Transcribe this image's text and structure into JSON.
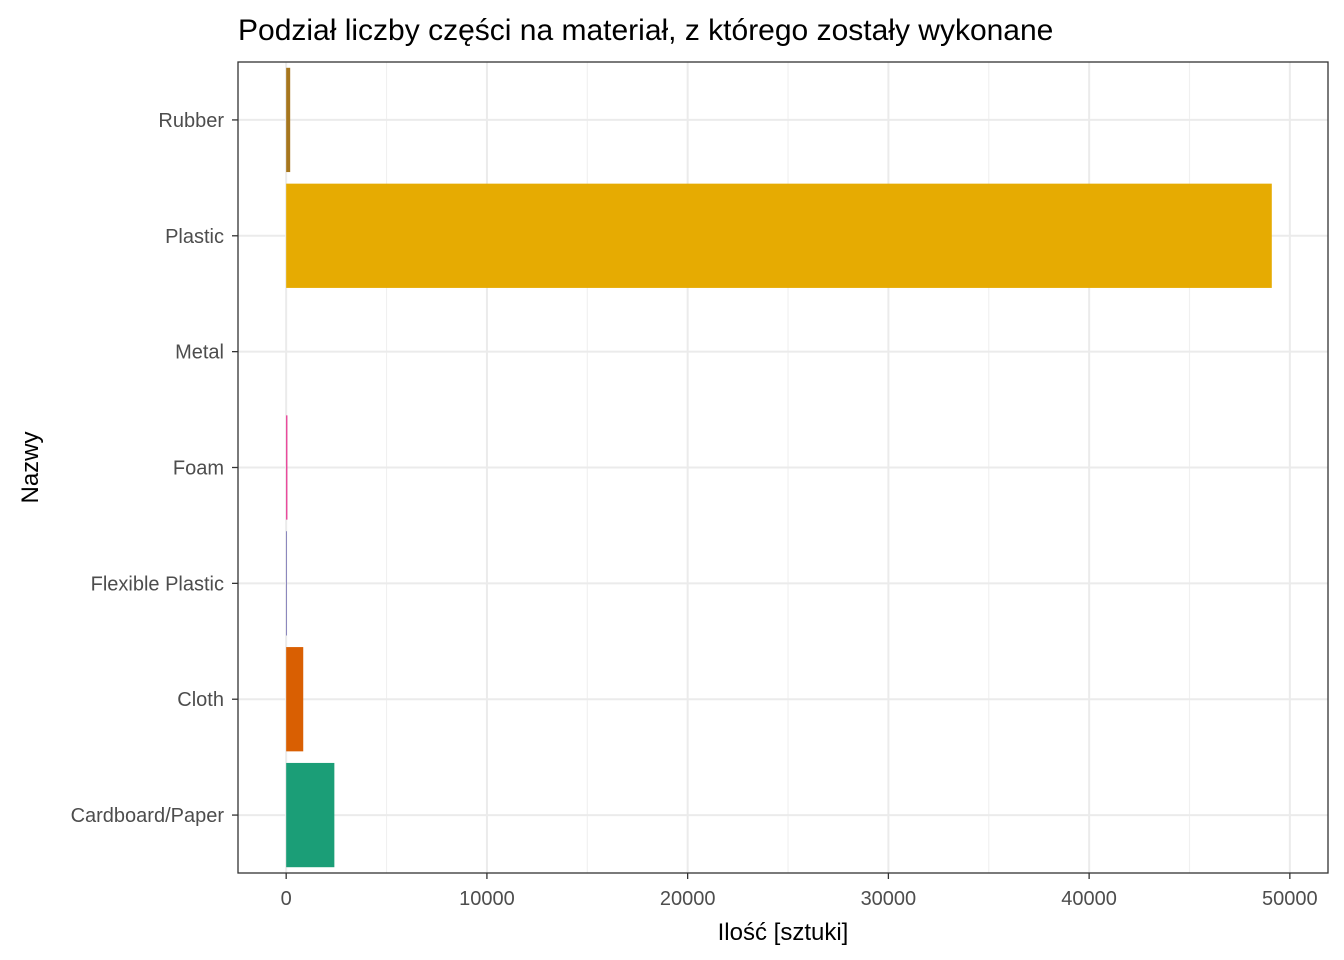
{
  "chart_data": {
    "type": "bar",
    "orientation": "horizontal",
    "title": "Podział liczby części na materiał, z którego zostały wykonane",
    "xlabel": "Ilość [sztuki]",
    "ylabel": "Nazwy",
    "categories": [
      "Cardboard/Paper",
      "Cloth",
      "Flexible Plastic",
      "Foam",
      "Metal",
      "Plastic",
      "Rubber"
    ],
    "values": [
      2400,
      850,
      40,
      60,
      0,
      49100,
      200
    ],
    "colors": [
      "#1b9e77",
      "#d95f02",
      "#7570b3",
      "#e7298a",
      "#66a61e",
      "#e6ab02",
      "#a6761d"
    ],
    "xlim": [
      -2400,
      51900
    ],
    "xticks": [
      0,
      10000,
      20000,
      30000,
      40000,
      50000
    ],
    "xtick_labels": [
      "0",
      "10000",
      "20000",
      "30000",
      "40000",
      "50000"
    ],
    "grid": true,
    "legend": "none",
    "theme": "bw"
  }
}
